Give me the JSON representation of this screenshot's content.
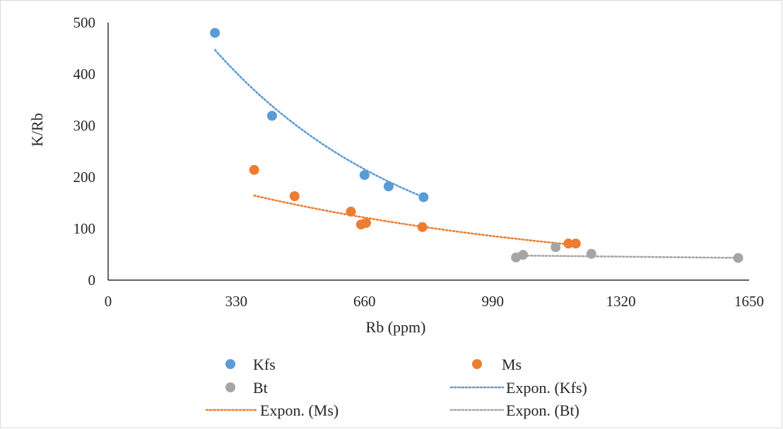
{
  "chart_data": {
    "type": "scatter",
    "xlabel": "Rb (ppm)",
    "ylabel": "K/Rb",
    "xlim": [
      0,
      1650
    ],
    "ylim": [
      0,
      500
    ],
    "xticks": [
      0,
      330,
      660,
      990,
      1320,
      1650
    ],
    "yticks": [
      0,
      100,
      200,
      300,
      400,
      500
    ],
    "grid": false,
    "legend_position": "bottom",
    "series": [
      {
        "name": "Kfs",
        "color": "#5b9bd5",
        "x": [
          275,
          422,
          660,
          722,
          812
        ],
        "y": [
          480,
          319,
          204,
          182,
          161
        ]
      },
      {
        "name": "Ms",
        "color": "#ed7d31",
        "x": [
          376,
          480,
          625,
          651,
          664,
          809,
          1185,
          1204
        ],
        "y": [
          214,
          163,
          133,
          108,
          111,
          103,
          71,
          71
        ]
      },
      {
        "name": "Bt",
        "color": "#a5a5a5",
        "x": [
          1050,
          1068,
          1152,
          1244,
          1622
        ],
        "y": [
          44,
          49,
          64,
          51,
          43
        ]
      }
    ],
    "trendlines": [
      {
        "name": "Expon. (Kfs)",
        "of": "Kfs",
        "color": "#5b9bd5",
        "type": "exponential",
        "a": 753.3,
        "b": -0.001898,
        "x_range": [
          275,
          812
        ]
      },
      {
        "name": "Expon. (Ms)",
        "of": "Ms",
        "color": "#ed7d31",
        "type": "exponential",
        "a": 244.8,
        "b": -0.001062,
        "x_range": [
          376,
          1204
        ]
      },
      {
        "name": "Expon. (Bt)",
        "of": "Bt",
        "color": "#a5a5a5",
        "type": "exponential",
        "a": 57.6,
        "b": -0.000177,
        "x_range": [
          1050,
          1622
        ]
      }
    ],
    "legend": [
      "Kfs",
      "Ms",
      "Bt",
      "Expon. (Kfs)",
      "Expon. (Ms)",
      "Expon. (Bt)"
    ]
  }
}
